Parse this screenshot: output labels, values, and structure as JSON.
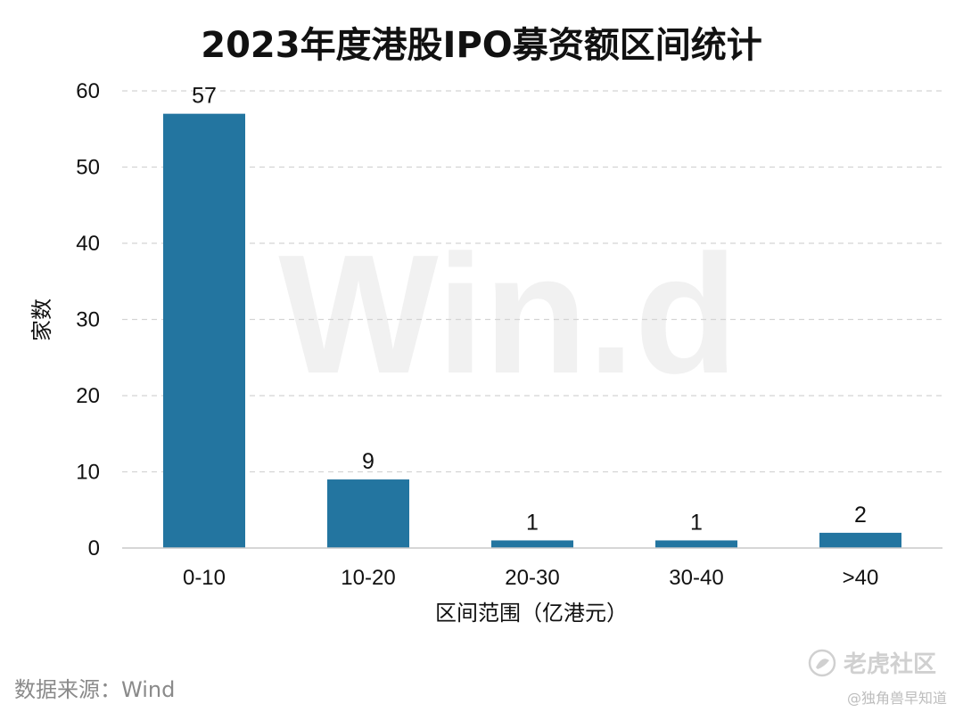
{
  "chart_data": {
    "type": "bar",
    "title": "2023年度港股IPO募资额区间统计",
    "xlabel": "区间范围（亿港元）",
    "ylabel": "家数",
    "categories": [
      "0-10",
      "10-20",
      "20-30",
      "30-40",
      ">40"
    ],
    "values": [
      57,
      9,
      1,
      1,
      2
    ],
    "data_labels": [
      "57",
      "9",
      "1",
      "1",
      "2"
    ],
    "ylim": [
      0,
      60
    ],
    "yticks": [
      "0",
      "10",
      "20",
      "30",
      "40",
      "50",
      "60"
    ],
    "grid": true,
    "legend": "none",
    "bar_color": "#2375a0"
  },
  "source": "数据来源：Wind",
  "watermark": "Win.d",
  "brand": {
    "name": "老虎社区",
    "credit": "@独角兽早知道"
  }
}
